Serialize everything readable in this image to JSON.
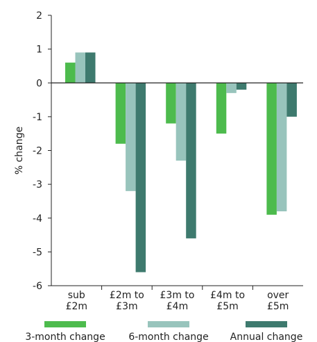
{
  "chart_data": {
    "type": "bar",
    "title": "",
    "xlabel": "",
    "ylabel": "% change",
    "ylim": [
      -6,
      2
    ],
    "yticks": [
      2,
      1,
      0,
      -1,
      -2,
      -3,
      -4,
      -5,
      -6
    ],
    "categories": [
      [
        "sub",
        "£2m"
      ],
      [
        "£2m to",
        "£3m"
      ],
      [
        "£3m to",
        "£4m"
      ],
      [
        "£4m to",
        "£5m"
      ],
      [
        "over",
        "£5m"
      ]
    ],
    "series": [
      {
        "name": "3-month change",
        "color": "#4dbb4d",
        "values": [
          0.6,
          -1.8,
          -1.2,
          -1.5,
          -3.9
        ]
      },
      {
        "name": "6-month change",
        "color": "#98c4bc",
        "values": [
          0.9,
          -3.2,
          -2.3,
          -0.3,
          -3.8
        ]
      },
      {
        "name": "Annual change",
        "color": "#3e7a6e",
        "values": [
          0.9,
          -5.6,
          -4.6,
          -0.2,
          -1.0
        ]
      }
    ],
    "grid": false,
    "legend_position": "bottom"
  }
}
